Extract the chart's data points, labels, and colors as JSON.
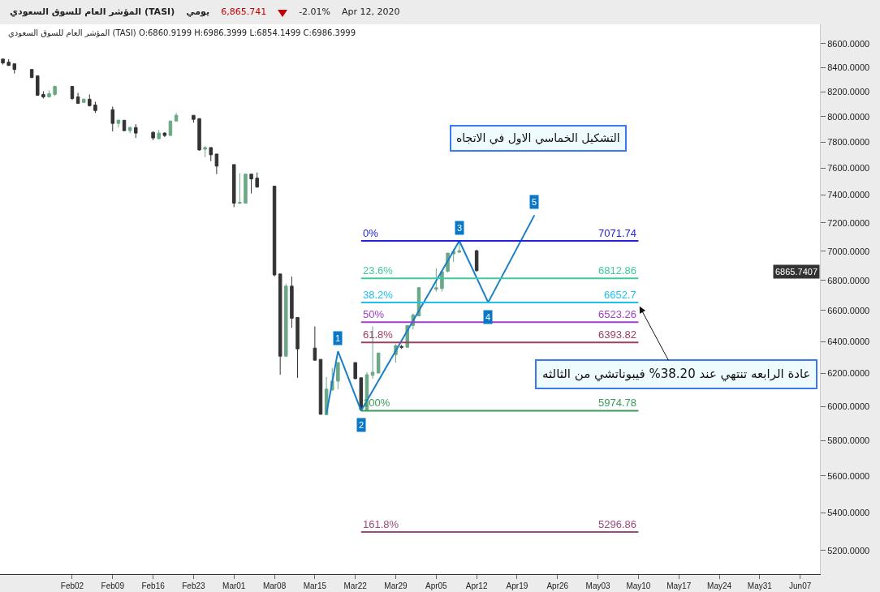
{
  "chart_data": {
    "type": "candlestick",
    "x": [
      "2020-01-21",
      "2020-01-22",
      "2020-01-23",
      "2020-01-26",
      "2020-01-27",
      "2020-01-28",
      "2020-01-29",
      "2020-01-30",
      "2020-02-02",
      "2020-02-03",
      "2020-02-04",
      "2020-02-05",
      "2020-02-06",
      "2020-02-09",
      "2020-02-10",
      "2020-02-11",
      "2020-02-12",
      "2020-02-13",
      "2020-02-16",
      "2020-02-17",
      "2020-02-18",
      "2020-02-19",
      "2020-02-20",
      "2020-02-23",
      "2020-02-24",
      "2020-02-25",
      "2020-02-26",
      "2020-02-27",
      "2020-03-01",
      "2020-03-02",
      "2020-03-03",
      "2020-03-04",
      "2020-03-05",
      "2020-03-08",
      "2020-03-09",
      "2020-03-10",
      "2020-03-11",
      "2020-03-12",
      "2020-03-15",
      "2020-03-16",
      "2020-03-17",
      "2020-03-18",
      "2020-03-19",
      "2020-03-22",
      "2020-03-23",
      "2020-03-24",
      "2020-03-25",
      "2020-03-26",
      "2020-03-29",
      "2020-03-30",
      "2020-03-31",
      "2020-04-01",
      "2020-04-02",
      "2020-04-05",
      "2020-04-06",
      "2020-04-07",
      "2020-04-08",
      "2020-04-09",
      "2020-04-12"
    ],
    "ohlc": [
      [
        8470,
        8470,
        8424,
        8437
      ],
      [
        8444,
        8470,
        8414,
        8416
      ],
      [
        8430,
        8430,
        8349,
        8383
      ],
      [
        8383,
        8383,
        8310,
        8316
      ],
      [
        8330,
        8330,
        8165,
        8171
      ],
      [
        8178,
        8204,
        8145,
        8158
      ],
      [
        8158,
        8211,
        8152,
        8184
      ],
      [
        8178,
        8250,
        8165,
        8243
      ],
      [
        8243,
        8243,
        8132,
        8145
      ],
      [
        8158,
        8191,
        8100,
        8106
      ],
      [
        8113,
        8145,
        8110,
        8139
      ],
      [
        8139,
        8178,
        8080,
        8087
      ],
      [
        8093,
        8119,
        8029,
        8048
      ],
      [
        8055,
        8080,
        7883,
        7946
      ],
      [
        7946,
        7978,
        7914,
        7971
      ],
      [
        7971,
        7971,
        7885,
        7889
      ],
      [
        7889,
        7920,
        7870,
        7914
      ],
      [
        7914,
        7940,
        7832,
        7870
      ],
      [
        7876,
        7883,
        7814,
        7832
      ],
      [
        7826,
        7895,
        7824,
        7870
      ],
      [
        7870,
        7876,
        7839,
        7851
      ],
      [
        7851,
        7965,
        7851,
        7965
      ],
      [
        7965,
        8029,
        7960,
        8010
      ],
      [
        8010,
        8010,
        7952,
        7978
      ],
      [
        7984,
        7984,
        7735,
        7739
      ],
      [
        7745,
        7770,
        7684,
        7758
      ],
      [
        7758,
        7758,
        7653,
        7702
      ],
      [
        7708,
        7708,
        7556,
        7616
      ],
      [
        7628,
        7628,
        7312,
        7341
      ],
      [
        7341,
        7562,
        7335,
        7347
      ],
      [
        7341,
        7556,
        7338,
        7556
      ],
      [
        7556,
        7556,
        7412,
        7520
      ],
      [
        7526,
        7568,
        7454,
        7460
      ],
      [
        7466,
        7466,
        6826,
        6837
      ],
      [
        6843,
        6843,
        6192,
        6307
      ],
      [
        6307,
        6778,
        6305,
        6761
      ],
      [
        6761,
        6826,
        6486,
        6549
      ],
      [
        6554,
        6554,
        6173,
        6353
      ],
      [
        6358,
        6496,
        6280,
        6282
      ],
      [
        6287,
        6287,
        5950,
        5954
      ],
      [
        5950,
        6178,
        5948,
        6104
      ],
      [
        6099,
        6232,
        6094,
        6153
      ],
      [
        6153,
        6267,
        6104,
        6267
      ],
      [
        6267,
        6267,
        6165,
        6168
      ],
      [
        6173,
        6173,
        5974.78,
        5980
      ],
      [
        5980,
        6207,
        5976,
        6192
      ],
      [
        6188,
        6496,
        6168,
        6207
      ],
      [
        6202,
        6327,
        6202,
        6327
      ],
      [
        6317,
        6383,
        6267,
        6373
      ],
      [
        6368,
        6378,
        6352,
        6363
      ],
      [
        6363,
        6502,
        6360,
        6502
      ],
      [
        6502,
        6580,
        6476,
        6570
      ],
      [
        6564,
        6751,
        6560,
        6751
      ],
      [
        6740,
        6881,
        6724,
        6750
      ],
      [
        6745,
        6859,
        6724,
        6859
      ],
      [
        6860.92,
        6986.4,
        6854.15,
        6986.4
      ],
      [
        6981,
        7014,
        6925,
        6998
      ],
      [
        6992,
        7071.74,
        6990,
        7003
      ],
      [
        7003,
        7010,
        6858,
        6865.74
      ]
    ],
    "colors": [
      "#333333",
      "#333333",
      "#333333",
      "#333333",
      "#333333",
      "#333333",
      "#6aa886",
      "#6aa886",
      "#333333",
      "#333333",
      "#6aa886",
      "#333333",
      "#333333",
      "#333333",
      "#6aa886",
      "#333333",
      "#6aa886",
      "#333333",
      "#333333",
      "#6aa886",
      "#333333",
      "#6aa886",
      "#6aa886",
      "#333333",
      "#333333",
      "#6aa886",
      "#333333",
      "#333333",
      "#333333",
      "#6aa886",
      "#6aa886",
      "#333333",
      "#333333",
      "#333333",
      "#333333",
      "#6aa886",
      "#333333",
      "#333333",
      "#333333",
      "#333333",
      "#6aa886",
      "#6aa886",
      "#6aa886",
      "#333333",
      "#333333",
      "#6aa886",
      "#6aa886",
      "#6aa886",
      "#6aa886",
      "#333333",
      "#6aa886",
      "#6aa886",
      "#6aa886",
      "#6aa886",
      "#6aa886",
      "#6aa886",
      "#6aa886",
      "#6aa886",
      "#333333"
    ],
    "series": [
      {
        "type": "line",
        "color": "#1a7fc7",
        "x": [
          "2020-03-17",
          "2020-03-19",
          "2020-03-23",
          "2020-04-09",
          "2020-04-14",
          "2020-04-22"
        ],
        "values": [
          5959,
          6338,
          5974.78,
          7071.74,
          6652.7,
          7254
        ]
      },
      {
        "type": "line",
        "name": "0%",
        "color": "#2222dd",
        "x": [
          "2020-03-23",
          "2020-05-10"
        ],
        "values": [
          7071.74,
          7071.74
        ]
      },
      {
        "type": "line",
        "name": "23.6%",
        "color": "#40c8a0",
        "x": [
          "2020-03-23",
          "2020-05-10"
        ],
        "values": [
          6812.86,
          6812.86
        ]
      },
      {
        "type": "line",
        "name": "38.2%",
        "color": "#20c0f0",
        "x": [
          "2020-03-23",
          "2020-05-10"
        ],
        "values": [
          6652.7,
          6652.7
        ]
      },
      {
        "type": "line",
        "name": "50%",
        "color": "#a040c8",
        "x": [
          "2020-03-23",
          "2020-05-10"
        ],
        "values": [
          6523.26,
          6523.26
        ]
      },
      {
        "type": "line",
        "name": "61.8%",
        "color": "#a04060",
        "x": [
          "2020-03-23",
          "2020-05-10"
        ],
        "values": [
          6393.82,
          6393.82
        ]
      },
      {
        "type": "line",
        "name": "100%",
        "color": "#3a9a5a",
        "x": [
          "2020-03-23",
          "2020-05-10"
        ],
        "values": [
          5974.78,
          5974.78
        ]
      },
      {
        "type": "line",
        "name": "161.8%",
        "color": "#a04880",
        "x": [
          "2020-03-23",
          "2020-05-10"
        ],
        "values": [
          5296.86,
          5296.86
        ]
      }
    ],
    "xlim": [
      "2020-01-20T12:00",
      "2020-06-10T10:00"
    ],
    "xticks": [
      {
        "value": "2020-02-02",
        "label": "Feb02"
      },
      {
        "value": "2020-02-09",
        "label": "Feb09"
      },
      {
        "value": "2020-02-16",
        "label": "Feb16"
      },
      {
        "value": "2020-02-23",
        "label": "Feb23"
      },
      {
        "value": "2020-03-01",
        "label": "Mar01"
      },
      {
        "value": "2020-03-08",
        "label": "Mar08"
      },
      {
        "value": "2020-03-15",
        "label": "Mar15"
      },
      {
        "value": "2020-03-22",
        "label": "Mar22"
      },
      {
        "value": "2020-03-29",
        "label": "Mar29"
      },
      {
        "value": "2020-04-05",
        "label": "Apr05"
      },
      {
        "value": "2020-04-12",
        "label": "Apr12"
      },
      {
        "value": "2020-04-19",
        "label": "Apr19"
      },
      {
        "value": "2020-04-26",
        "label": "Apr26"
      },
      {
        "value": "2020-05-03",
        "label": "May03"
      },
      {
        "value": "2020-05-10",
        "label": "May10"
      },
      {
        "value": "2020-05-17",
        "label": "May17"
      },
      {
        "value": "2020-05-24",
        "label": "May24"
      },
      {
        "value": "2020-05-31",
        "label": "May31"
      },
      {
        "value": "2020-06-07",
        "label": "Jun07"
      }
    ],
    "ylim": [
      5080,
      8767
    ],
    "yticks": [
      {
        "value": 5200,
        "label": "5200.0000"
      },
      {
        "value": 5400,
        "label": "5400.0000"
      },
      {
        "value": 5600,
        "label": "5600.0000"
      },
      {
        "value": 5800,
        "label": "5800.0000"
      },
      {
        "value": 6000,
        "label": "6000.0000"
      },
      {
        "value": 6200,
        "label": "6200.0000"
      },
      {
        "value": 6400,
        "label": "6400.0000"
      },
      {
        "value": 6600,
        "label": "6600.0000"
      },
      {
        "value": 6800,
        "label": "6800.0000"
      },
      {
        "value": 7000,
        "label": "7000.0000"
      },
      {
        "value": 7200,
        "label": "7200.0000"
      },
      {
        "value": 7400,
        "label": "7400.0000"
      },
      {
        "value": 7600,
        "label": "7600.0000"
      },
      {
        "value": 7800,
        "label": "7800.0000"
      },
      {
        "value": 8000,
        "label": "8000.0000"
      },
      {
        "value": 8200,
        "label": "8200.0000"
      },
      {
        "value": 8400,
        "label": "8400.0000"
      },
      {
        "value": 8600,
        "label": "8600.0000"
      }
    ],
    "log": true,
    "grid": false,
    "annotations": [
      "المؤشر العام للسوق السعودي (TASI)",
      "يومي",
      "6,865.741",
      "-2.01%",
      "Apr 12, 2020",
      "المؤشر العام للسوق السعودي (TASI)   O:6860.9199   H:6986.3999   L:6854.1499   C:6986.3999",
      "التشكيل الخماسي الاول في الاتجاه",
      "عادة الرابعه تنتهي عند 38.20% فيبوناتشي من الثالثه",
      {
        "text": "1",
        "x": "2020-03-19",
        "y": 6338
      },
      {
        "text": "2",
        "x": "2020-03-23",
        "y": 5974.78
      },
      {
        "text": "3",
        "x": "2020-04-09",
        "y": 7071.74
      },
      {
        "text": "4",
        "x": "2020-04-14",
        "y": 6652.7
      },
      {
        "text": "5",
        "x": "2020-04-22",
        "y": 7254
      },
      {
        "text": "7071.74",
        "x": "2020-05-10",
        "y": 7071.74
      },
      {
        "text": "6812.86",
        "x": "2020-05-10",
        "y": 6812.86
      },
      {
        "text": "6652.7",
        "x": "2020-05-10",
        "y": 6652.7
      },
      {
        "text": "6523.26",
        "x": "2020-05-10",
        "y": 6523.26
      },
      {
        "text": "6393.82",
        "x": "2020-05-10",
        "y": 6393.82
      },
      {
        "text": "5974.78",
        "x": "2020-05-10",
        "y": 5974.78
      },
      {
        "text": "5296.86",
        "x": "2020-05-10",
        "y": 5296.86
      },
      "6865.7407"
    ]
  }
}
